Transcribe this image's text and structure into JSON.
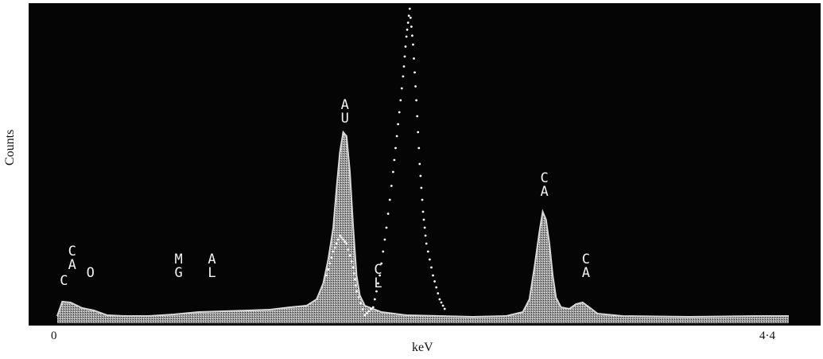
{
  "chart_data": {
    "type": "area",
    "title": "",
    "xlabel": "keV",
    "ylabel": "Counts",
    "xlim": [
      0,
      4.4
    ],
    "x_tick_labels": [
      "0",
      "4·4"
    ],
    "grid": false,
    "legend": "none",
    "colors": {
      "background": "#050505",
      "spectrum": "#d8d8d8",
      "dots": "#ffffff",
      "text": "#f2f2f2"
    },
    "series": [
      {
        "points": [
          [
            0.0,
            9
          ],
          [
            0.03,
            27
          ],
          [
            0.08,
            26
          ],
          [
            0.15,
            19
          ],
          [
            0.22,
            16
          ],
          [
            0.3,
            10
          ],
          [
            0.4,
            9
          ],
          [
            0.55,
            9
          ],
          [
            0.7,
            11
          ],
          [
            0.85,
            14
          ],
          [
            1.0,
            15
          ],
          [
            1.15,
            16
          ],
          [
            1.28,
            17
          ],
          [
            1.4,
            20
          ],
          [
            1.5,
            22
          ],
          [
            1.56,
            30
          ],
          [
            1.6,
            50
          ],
          [
            1.63,
            80
          ],
          [
            1.66,
            120
          ],
          [
            1.68,
            170
          ],
          [
            1.7,
            215
          ],
          [
            1.72,
            240
          ],
          [
            1.74,
            235
          ],
          [
            1.76,
            190
          ],
          [
            1.78,
            120
          ],
          [
            1.8,
            60
          ],
          [
            1.82,
            35
          ],
          [
            1.85,
            22
          ],
          [
            1.95,
            14
          ],
          [
            2.1,
            10
          ],
          [
            2.3,
            9
          ],
          [
            2.5,
            8
          ],
          [
            2.7,
            9
          ],
          [
            2.8,
            14
          ],
          [
            2.84,
            30
          ],
          [
            2.87,
            70
          ],
          [
            2.9,
            115
          ],
          [
            2.92,
            140
          ],
          [
            2.94,
            130
          ],
          [
            2.96,
            100
          ],
          [
            2.98,
            60
          ],
          [
            3.0,
            32
          ],
          [
            3.03,
            20
          ],
          [
            3.08,
            18
          ],
          [
            3.12,
            24
          ],
          [
            3.16,
            26
          ],
          [
            3.2,
            20
          ],
          [
            3.25,
            12
          ],
          [
            3.4,
            9
          ],
          [
            3.8,
            8
          ],
          [
            4.2,
            9
          ],
          [
            4.4,
            9
          ]
        ]
      },
      {
        "style": "dotted",
        "points": [
          [
            1.62,
            60
          ],
          [
            1.66,
            90
          ],
          [
            1.7,
            110
          ],
          [
            1.74,
            100
          ],
          [
            1.78,
            70
          ],
          [
            1.8,
            40
          ],
          [
            1.85,
            10
          ],
          [
            1.9,
            20
          ],
          [
            1.94,
            60
          ],
          [
            1.98,
            120
          ],
          [
            2.02,
            190
          ],
          [
            2.05,
            250
          ],
          [
            2.08,
            310
          ],
          [
            2.1,
            360
          ],
          [
            2.12,
            395
          ],
          [
            2.14,
            350
          ],
          [
            2.16,
            280
          ],
          [
            2.18,
            200
          ],
          [
            2.2,
            140
          ],
          [
            2.22,
            100
          ],
          [
            2.26,
            60
          ],
          [
            2.3,
            30
          ],
          [
            2.34,
            14
          ]
        ]
      }
    ],
    "annotations": [
      {
        "text": "C",
        "x": 0.04,
        "y": 48
      },
      {
        "text": "CA",
        "x": 0.09,
        "y": 68
      },
      {
        "text": "O",
        "x": 0.2,
        "y": 58
      },
      {
        "text": "MG",
        "x": 0.73,
        "y": 58
      },
      {
        "text": "AL",
        "x": 0.93,
        "y": 58
      },
      {
        "text": "AU",
        "x": 1.73,
        "y": 252
      },
      {
        "text": "CL",
        "x": 1.93,
        "y": 45
      },
      {
        "text": "CA",
        "x": 2.93,
        "y": 160
      },
      {
        "text": "CA",
        "x": 3.18,
        "y": 58
      }
    ]
  }
}
